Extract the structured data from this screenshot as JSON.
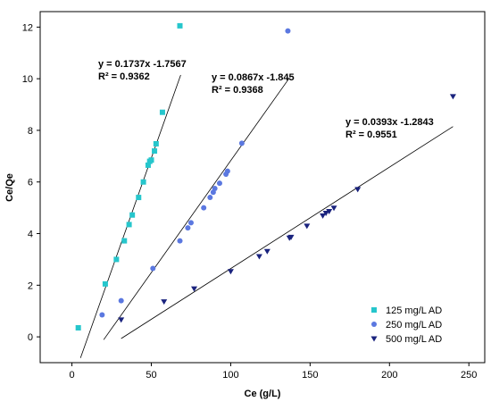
{
  "chart_data": {
    "type": "scatter",
    "xlabel": "Ce (g/L)",
    "ylabel": "Ce/Qe",
    "xlim": [
      -20,
      260
    ],
    "ylim": [
      -1,
      12.6
    ],
    "xticks": [
      0,
      50,
      100,
      150,
      200,
      250
    ],
    "yticks": [
      0,
      2,
      4,
      6,
      8,
      10,
      12
    ],
    "grid": false,
    "legend_position": "bottom-right",
    "series": [
      {
        "name": "125 mg/L AD",
        "marker": "square",
        "color": "#26c6cc",
        "points": [
          [
            4,
            0.35
          ],
          [
            21,
            2.05
          ],
          [
            28,
            3.0
          ],
          [
            33,
            3.72
          ],
          [
            36,
            4.35
          ],
          [
            38,
            4.72
          ],
          [
            42,
            5.4
          ],
          [
            45,
            6.0
          ],
          [
            48,
            6.65
          ],
          [
            49,
            6.8
          ],
          [
            50,
            6.85
          ],
          [
            52,
            7.2
          ],
          [
            53,
            7.48
          ],
          [
            57,
            8.7
          ],
          [
            68,
            12.05
          ]
        ],
        "fit": {
          "slope": 0.1737,
          "intercept": -1.7567,
          "x_range": [
            5.4,
            68.5
          ]
        },
        "equation": "y = 0.1737x -1.7567",
        "r2": "R² = 0.9362"
      },
      {
        "name": "250 mg/L AD",
        "marker": "circle",
        "color": "#5b78e0",
        "points": [
          [
            19,
            0.85
          ],
          [
            31,
            1.4
          ],
          [
            51,
            2.65
          ],
          [
            68,
            3.72
          ],
          [
            73,
            4.22
          ],
          [
            75,
            4.42
          ],
          [
            83,
            5.0
          ],
          [
            87,
            5.4
          ],
          [
            89,
            5.6
          ],
          [
            90,
            5.75
          ],
          [
            93,
            5.95
          ],
          [
            97,
            6.3
          ],
          [
            98,
            6.42
          ],
          [
            107,
            7.5
          ],
          [
            136,
            11.85
          ]
        ],
        "fit": {
          "slope": 0.0867,
          "intercept": -1.845,
          "x_range": [
            20,
            137
          ]
        },
        "equation": "y = 0.0867x -1.845",
        "r2": "R² = 0.9368"
      },
      {
        "name": "500 mg/L AD",
        "marker": "triangle-down",
        "color": "#1a237e",
        "points": [
          [
            31,
            0.65
          ],
          [
            58,
            1.35
          ],
          [
            77,
            1.85
          ],
          [
            100,
            2.52
          ],
          [
            118,
            3.1
          ],
          [
            123,
            3.3
          ],
          [
            137,
            3.82
          ],
          [
            138,
            3.85
          ],
          [
            148,
            4.28
          ],
          [
            158,
            4.68
          ],
          [
            160,
            4.78
          ],
          [
            162,
            4.85
          ],
          [
            165,
            4.98
          ],
          [
            180,
            5.7
          ],
          [
            240,
            9.3
          ]
        ],
        "fit": {
          "slope": 0.0393,
          "intercept": -1.2843,
          "x_range": [
            31,
            240
          ]
        },
        "equation": "y = 0.0393x -1.2843",
        "r2": "R² = 0.9551"
      }
    ]
  }
}
